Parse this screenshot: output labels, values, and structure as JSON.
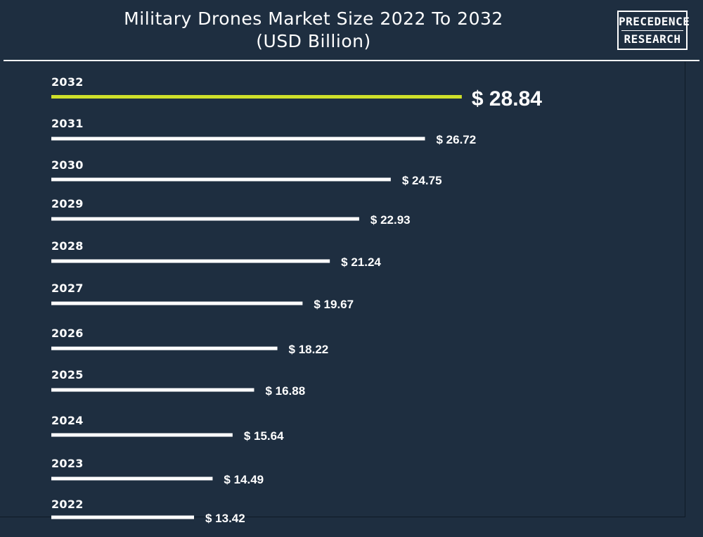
{
  "title": {
    "line1": "Military Drones Market Size 2022 To 2032",
    "line2": "(USD Billion)"
  },
  "logo": {
    "line1": "PRECEDENCE",
    "line2": "RESEARCH"
  },
  "colors": {
    "background": "#1e2e40",
    "bar": "#ffffff",
    "highlight": "#cfe02a"
  },
  "chart_data": {
    "type": "bar",
    "orientation": "horizontal",
    "categories": [
      "2032",
      "2031",
      "2030",
      "2029",
      "2028",
      "2027",
      "2026",
      "2025",
      "2024",
      "2023",
      "2022"
    ],
    "values": [
      28.84,
      26.72,
      24.75,
      22.93,
      21.24,
      19.67,
      18.22,
      16.88,
      15.64,
      14.49,
      13.42
    ],
    "value_labels": [
      "$ 28.84",
      "$ 26.72",
      "$ 24.75",
      "$ 22.93",
      "$ 21.24",
      "$ 19.67",
      "$ 18.22",
      "$ 16.88",
      "$ 15.64",
      "$ 14.49",
      "$ 13.42"
    ],
    "highlight_category": "2032",
    "title": "Military Drones Market Size 2022 To 2032",
    "xlabel": "",
    "ylabel": "",
    "unit": "USD Billion",
    "grid": false,
    "legend": "none"
  }
}
